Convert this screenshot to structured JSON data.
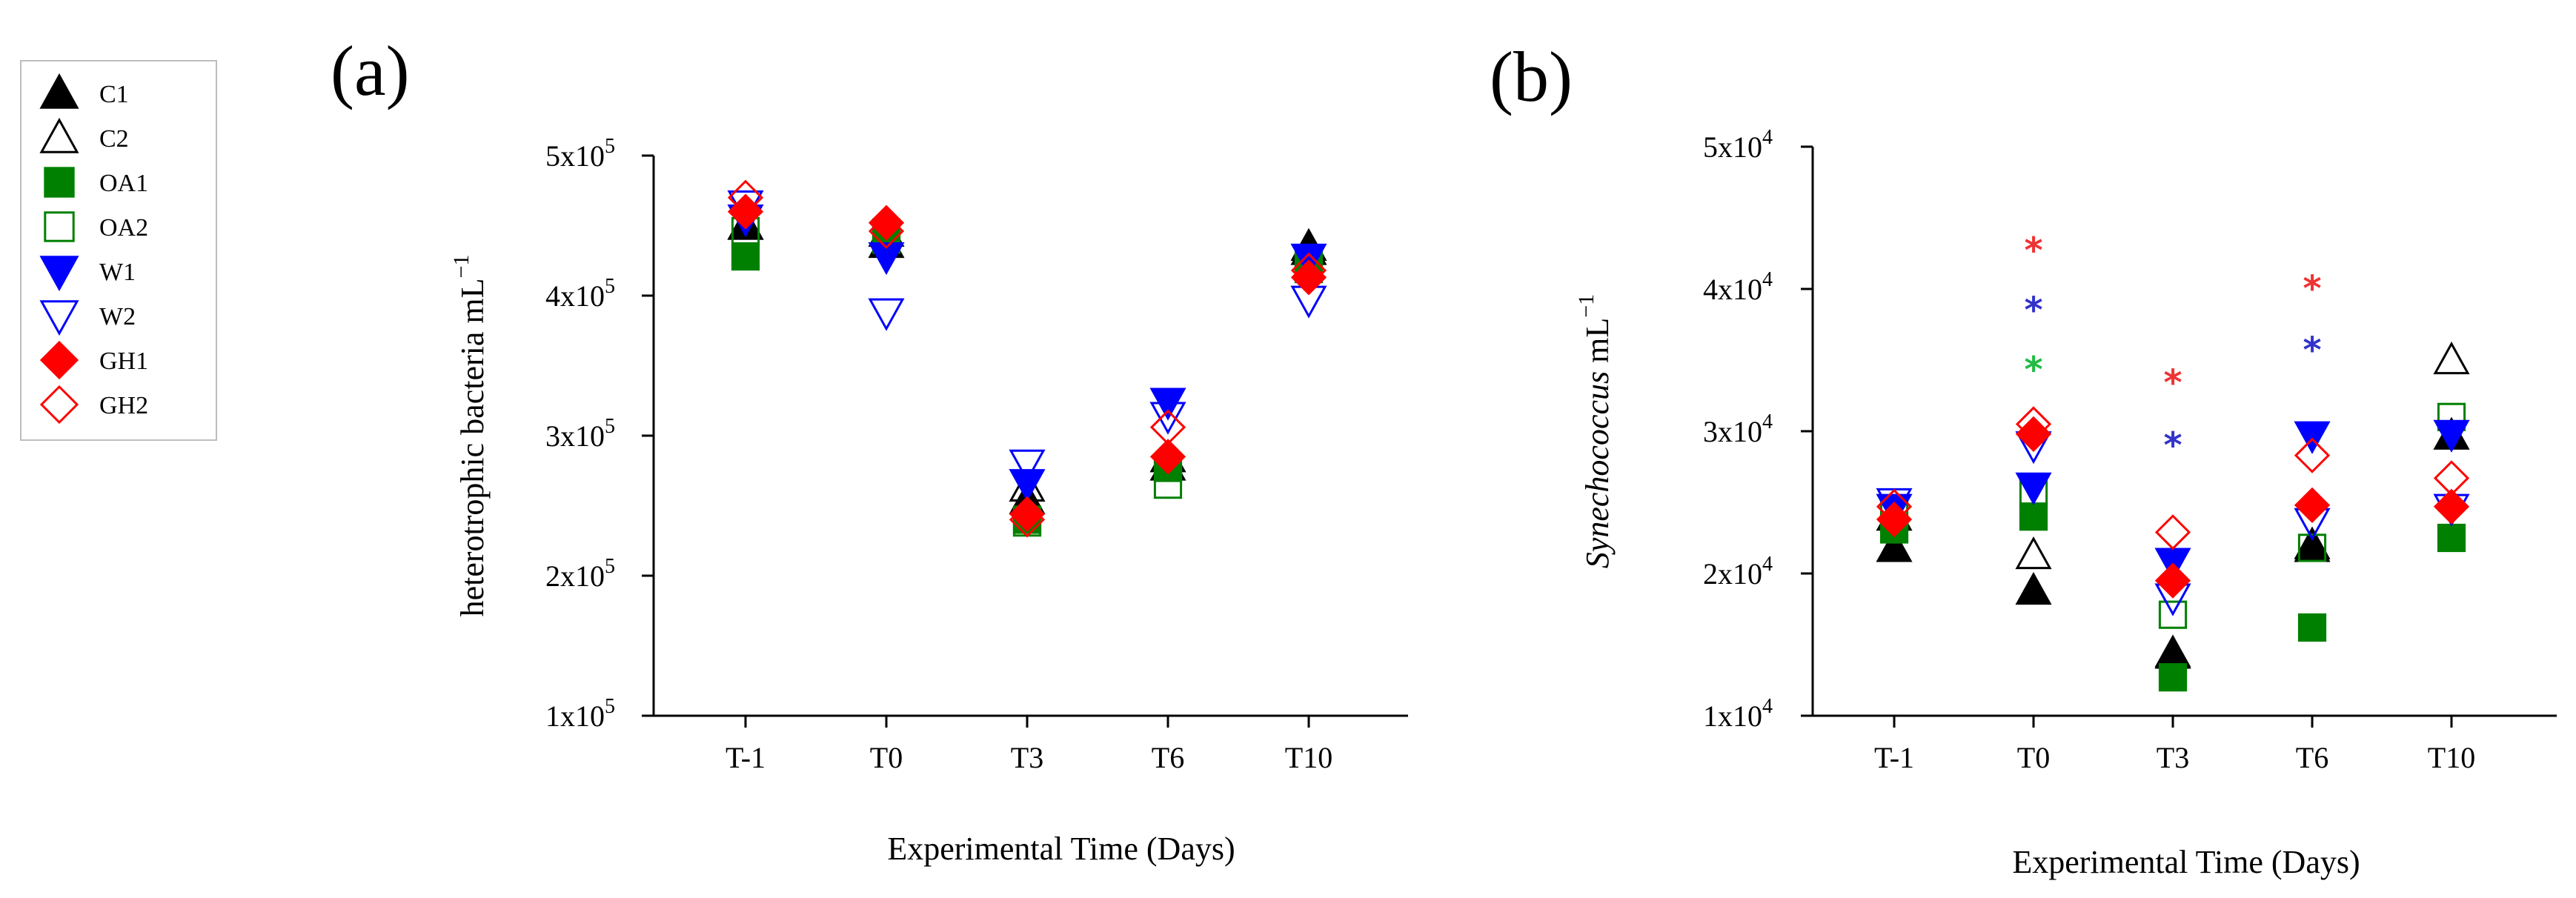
{
  "colors": {
    "black": "#000000",
    "green": "#008000",
    "blue": "#0000ff",
    "red": "#ff0000",
    "star_red": "#ee3333",
    "star_blue": "#3333cc",
    "star_green": "#22bb44"
  },
  "legend": {
    "items": [
      {
        "label": "C1",
        "marker": "triangle-up",
        "filled": true,
        "color": "#000000"
      },
      {
        "label": "C2",
        "marker": "triangle-up",
        "filled": false,
        "color": "#000000"
      },
      {
        "label": "OA1",
        "marker": "square",
        "filled": true,
        "color": "#008000"
      },
      {
        "label": "OA2",
        "marker": "square",
        "filled": false,
        "color": "#008000"
      },
      {
        "label": "W1",
        "marker": "triangle-down",
        "filled": true,
        "color": "#0000ff"
      },
      {
        "label": "W2",
        "marker": "triangle-down",
        "filled": false,
        "color": "#0000ff"
      },
      {
        "label": "GH1",
        "marker": "diamond",
        "filled": true,
        "color": "#ff0000"
      },
      {
        "label": "GH2",
        "marker": "diamond",
        "filled": false,
        "color": "#ff0000"
      }
    ]
  },
  "chart_data": [
    {
      "id": "a",
      "panel_label": "(a)",
      "type": "scatter",
      "xlabel": "Experimental Time (Days)",
      "ylabel": "heterotrophic bacteria mL",
      "ylabel_exp": "−1",
      "categories": [
        "T-1",
        "T0",
        "T3",
        "T6",
        "T10"
      ],
      "ylim": [
        100000,
        500000
      ],
      "yticks": [
        {
          "value": 100000,
          "base": "1x10",
          "exp": "5"
        },
        {
          "value": 200000,
          "base": "2x10",
          "exp": "5"
        },
        {
          "value": 300000,
          "base": "3x10",
          "exp": "5"
        },
        {
          "value": 400000,
          "base": "4x10",
          "exp": "5"
        },
        {
          "value": 500000,
          "base": "5x10",
          "exp": "5"
        }
      ],
      "series": [
        {
          "name": "C1",
          "values": [
            450000,
            437000,
            254000,
            278000,
            435000
          ]
        },
        {
          "name": "C2",
          "values": [
            450000,
            445000,
            263000,
            284000,
            432000
          ]
        },
        {
          "name": "OA1",
          "values": [
            428000,
            440000,
            240000,
            277000,
            419000
          ]
        },
        {
          "name": "OA2",
          "values": [
            446000,
            445000,
            238000,
            265000,
            425000
          ]
        },
        {
          "name": "W1",
          "values": [
            455000,
            428000,
            266000,
            324000,
            427000
          ]
        },
        {
          "name": "W2",
          "values": [
            465000,
            388000,
            280000,
            314000,
            397000
          ]
        },
        {
          "name": "GH1",
          "values": [
            460000,
            452000,
            244000,
            285000,
            413000
          ]
        },
        {
          "name": "GH2",
          "values": [
            470000,
            446000,
            240000,
            306000,
            418000
          ]
        }
      ],
      "annotations": []
    },
    {
      "id": "b",
      "panel_label": "(b)",
      "type": "scatter",
      "xlabel": "Experimental Time (Days)",
      "ylabel": "Synechococcus",
      "ylabel_suffix": " mL",
      "ylabel_exp": "−1",
      "categories": [
        "T-1",
        "T0",
        "T3",
        "T6",
        "T10"
      ],
      "ylim": [
        10000,
        50000
      ],
      "yticks": [
        {
          "value": 10000,
          "base": "1x10",
          "exp": "4"
        },
        {
          "value": 20000,
          "base": "2x10",
          "exp": "4"
        },
        {
          "value": 30000,
          "base": "3x10",
          "exp": "4"
        },
        {
          "value": 40000,
          "base": "4x10",
          "exp": "4"
        },
        {
          "value": 50000,
          "base": "5x10",
          "exp": "4"
        }
      ],
      "series": [
        {
          "name": "C1",
          "values": [
            21800,
            18800,
            14300,
            21800,
            29700
          ]
        },
        {
          "name": "C2",
          "values": [
            24000,
            21300,
            14400,
            22000,
            35000
          ]
        },
        {
          "name": "OA1",
          "values": [
            23100,
            24000,
            12700,
            16200,
            22500
          ]
        },
        {
          "name": "OA2",
          "values": [
            24300,
            25600,
            17100,
            21800,
            31000
          ]
        },
        {
          "name": "W1",
          "values": [
            24600,
            26100,
            20800,
            29700,
            29800
          ]
        },
        {
          "name": "W2",
          "values": [
            25000,
            29000,
            18300,
            23600,
            24600
          ]
        },
        {
          "name": "GH1",
          "values": [
            23800,
            29800,
            19500,
            24800,
            24700
          ]
        },
        {
          "name": "GH2",
          "values": [
            24700,
            30500,
            22900,
            28300,
            26700
          ]
        }
      ],
      "annotations": [
        {
          "category": "T0",
          "value": 43000,
          "symbol": "*",
          "color": "#ee3333"
        },
        {
          "category": "T0",
          "value": 38800,
          "symbol": "*",
          "color": "#3333cc"
        },
        {
          "category": "T0",
          "value": 34600,
          "symbol": "*",
          "color": "#22bb44"
        },
        {
          "category": "T3",
          "value": 33700,
          "symbol": "*",
          "color": "#ee3333"
        },
        {
          "category": "T3",
          "value": 29300,
          "symbol": "*",
          "color": "#3333cc"
        },
        {
          "category": "T6",
          "value": 40300,
          "symbol": "*",
          "color": "#ee3333"
        },
        {
          "category": "T6",
          "value": 36000,
          "symbol": "*",
          "color": "#3333cc"
        }
      ]
    }
  ]
}
